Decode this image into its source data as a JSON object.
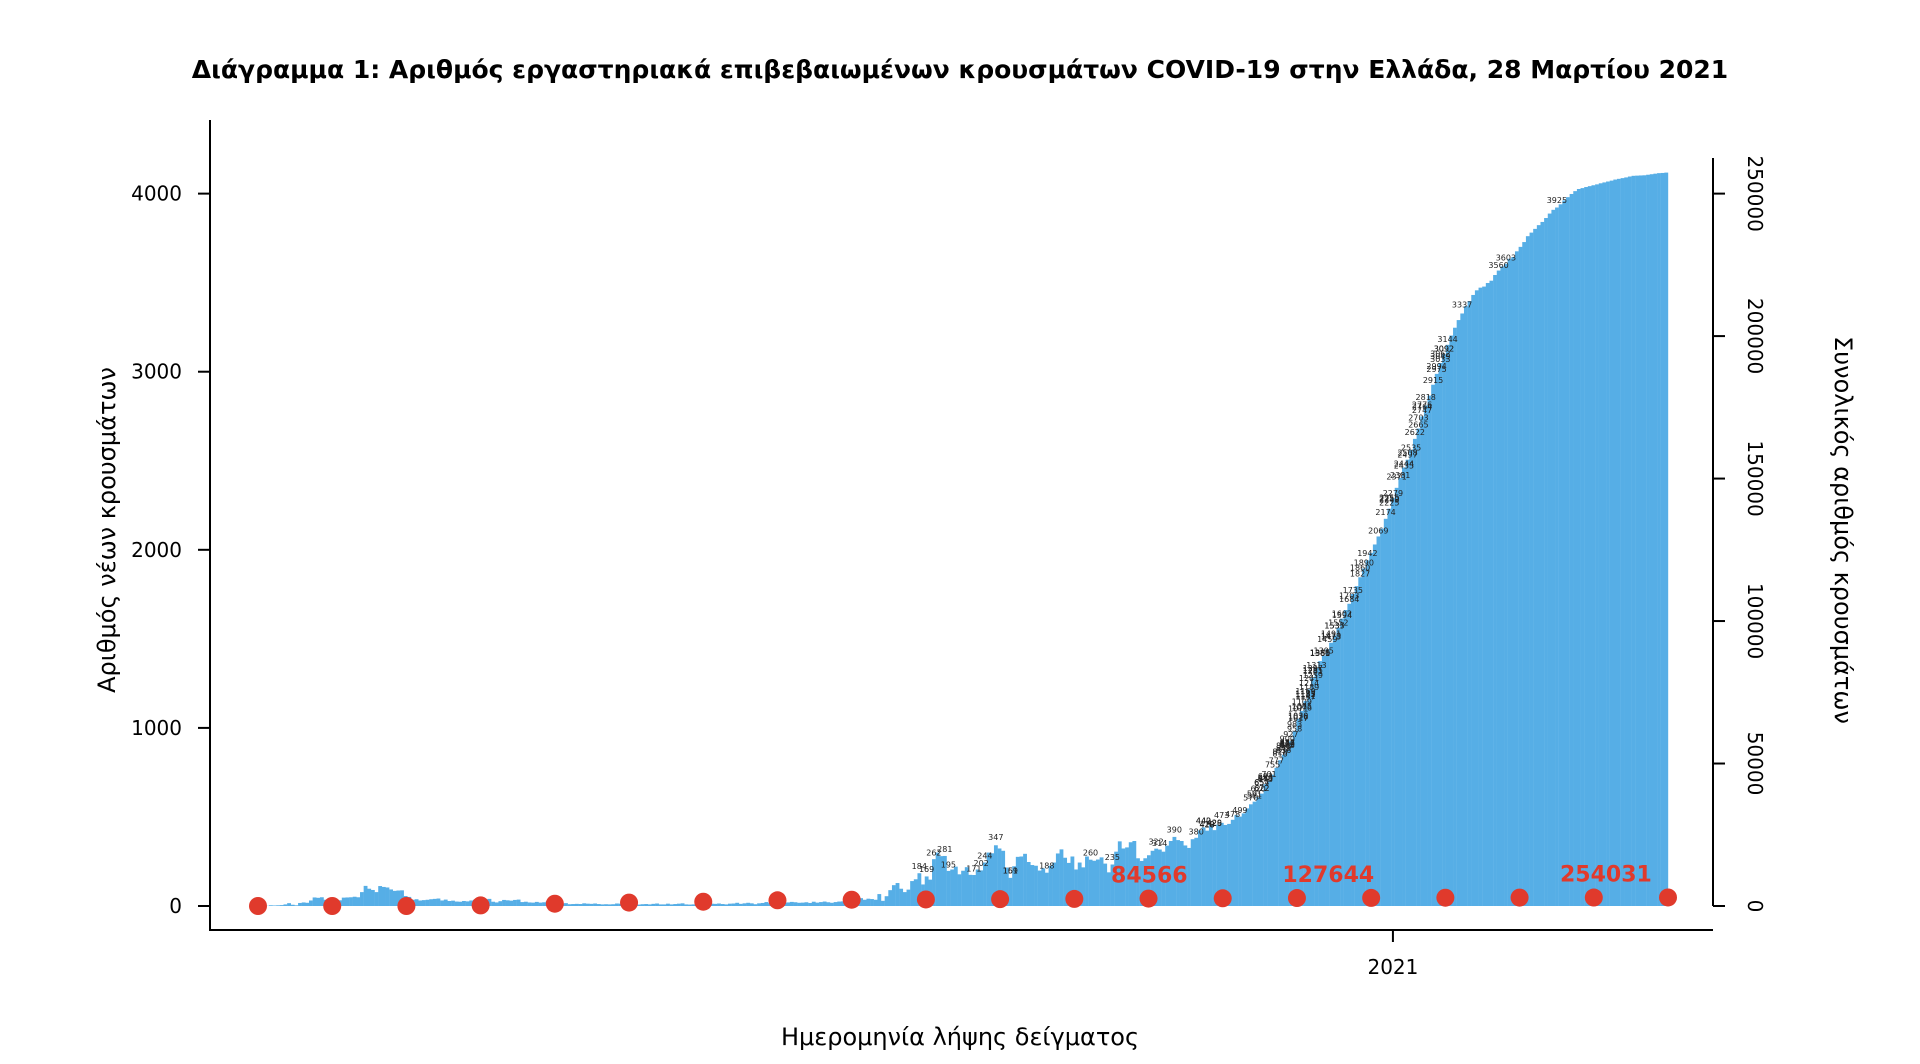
{
  "chart_data": {
    "type": "bar",
    "title": "Διάγραμμα 1: Αριθμός εργαστηριακά επιβεβαιωμένων κρουσμάτων COVID-19 στην Ελλάδα, 28 Μαρτίου 2021",
    "xlabel": "Ημερομηνία λήψης δείγματος",
    "ylabel": "Αριθμός νέων κρουσμάτων",
    "y2label": "Συνολικός αριθμός κρουσμάτων",
    "x_ticks": [
      {
        "label": "2021",
        "index": 311
      }
    ],
    "ylim": [
      0,
      4200
    ],
    "y_ticks": [
      0,
      1000,
      2000,
      3000,
      4000
    ],
    "y2lim": [
      0,
      262500
    ],
    "y2_ticks": [
      0,
      50000,
      100000,
      150000,
      200000,
      250000
    ],
    "colors": {
      "bars": "#56aee6",
      "cumulative": "#e03a2c"
    },
    "series": [
      {
        "name": "Αριθμός νέων κρουσμάτων",
        "type": "bar",
        "values": [
          2,
          2,
          1,
          4,
          3,
          4,
          5,
          9,
          16,
          7,
          4,
          17,
          20,
          18,
          31,
          48,
          46,
          49,
          35,
          38,
          27,
          21,
          32,
          47,
          48,
          49,
          52,
          49,
          78,
          113,
          97,
          90,
          78,
          112,
          107,
          104,
          93,
          85,
          87,
          88,
          56,
          51,
          35,
          38,
          31,
          33,
          35,
          38,
          40,
          42,
          31,
          36,
          28,
          30,
          25,
          24,
          28,
          26,
          31,
          35,
          33,
          30,
          37,
          40,
          24,
          20,
          27,
          34,
          32,
          30,
          34,
          36,
          22,
          24,
          20,
          19,
          23,
          19,
          21,
          28,
          18,
          16,
          14,
          14,
          16,
          10,
          11,
          12,
          11,
          15,
          13,
          12,
          14,
          11,
          9,
          10,
          9,
          10,
          14,
          13,
          15,
          10,
          12,
          9,
          8,
          10,
          11,
          9,
          12,
          14,
          9,
          9,
          13,
          9,
          11,
          13,
          15,
          9,
          8,
          9,
          10,
          11,
          8,
          10,
          13,
          12,
          14,
          11,
          9,
          13,
          14,
          18,
          12,
          15,
          18,
          15,
          10,
          15,
          17,
          22,
          16,
          18,
          21,
          19,
          18,
          20,
          23,
          21,
          18,
          19,
          21,
          17,
          24,
          19,
          22,
          25,
          21,
          18,
          22,
          25,
          26,
          19,
          22,
          34,
          26,
          44,
          35,
          41,
          39,
          35,
          67,
          29,
          55,
          89,
          117,
          129,
          97,
          78,
          92,
          140,
          150,
          184,
          121,
          166,
          148,
          263,
          300,
          280,
          281,
          197,
          205,
          221,
          178,
          198,
          218,
          175,
          174,
          205,
          200,
          244,
          300,
          296,
          341,
          323,
          310,
          216,
          158,
          223,
          276,
          278,
          293,
          247,
          230,
          226,
          199,
          211,
          187,
          226,
          244,
          295,
          318,
          271,
          242,
          278,
          205,
          244,
          217,
          278,
          260,
          254,
          261,
          273,
          238,
          189,
          233,
          305,
          363,
          323,
          329,
          358,
          365,
          268,
          253,
          268,
          285,
          310,
          322,
          317,
          305,
          339,
          365,
          388,
          370,
          365,
          340,
          326,
          375,
          383,
          425,
          441,
          423,
          453,
          426,
          457,
          467,
          455,
          461,
          484,
          510,
          502,
          520,
          548,
          571,
          586,
          611,
          631,
          684,
          703,
          737,
          776,
          819,
          850,
          878,
          925,
          981,
          1052,
          1096,
          1152,
          1217,
          1283,
          1337,
          1375,
          1406,
          1442,
          1478,
          1520,
          1563,
          1614,
          1662,
          1697,
          1752,
          1796,
          1846,
          1895,
          1941,
          1983,
          2030,
          2075,
          2119,
          2174,
          2231,
          2290,
          2348,
          2405,
          2462,
          2506,
          2561,
          2623,
          2681,
          2749,
          2811,
          2866,
          2927,
          2988,
          3049,
          3098,
          3151,
          3203,
          3247,
          3290,
          3327,
          3368,
          3397,
          3431,
          3457,
          3472,
          3478,
          3498,
          3511,
          3543,
          3568,
          3591,
          3606,
          3634,
          3644,
          3676,
          3701,
          3728,
          3761,
          3781,
          3802,
          3823,
          3841,
          3863,
          3888,
          3909,
          3922,
          3940,
          3962,
          3980,
          3998,
          4014,
          4026,
          4031,
          4037,
          4042,
          4047,
          4052,
          4058,
          4063,
          4068,
          4073,
          4079,
          4083,
          4087,
          4091,
          4096,
          4100,
          4101,
          4102,
          4103,
          4106,
          4109,
          4112,
          4115,
          4116,
          4118
        ]
      },
      {
        "name": "Συνολικός αριθμός κρουσμάτων",
        "type": "line",
        "values": [
          0,
          0,
          0,
          200,
          800,
          1200,
          1500,
          2000,
          2200,
          2300,
          2400,
          2500,
          2600,
          2700,
          2800,
          2850,
          2900,
          2950,
          2980,
          3000
        ]
      }
    ],
    "bar_data_labels": [
      {
        "text": "3603"
      },
      {
        "text": "3560"
      },
      {
        "text": "3062"
      },
      {
        "text": "3092"
      },
      {
        "text": "3033"
      },
      {
        "text": "3092"
      },
      {
        "text": "3049"
      },
      {
        "text": "2975"
      },
      {
        "text": "2818"
      },
      {
        "text": "2776"
      },
      {
        "text": "2535"
      },
      {
        "text": "2497"
      },
      {
        "text": "2444"
      },
      {
        "text": "2435"
      },
      {
        "text": "2243"
      },
      {
        "text": "2250"
      },
      {
        "text": "2069"
      },
      {
        "text": "1890"
      },
      {
        "text": "1827"
      },
      {
        "text": "1735"
      },
      {
        "text": "1594"
      },
      {
        "text": "1535"
      },
      {
        "text": "1537"
      },
      {
        "text": "1473"
      },
      {
        "text": "1395"
      },
      {
        "text": "1380"
      },
      {
        "text": "1285"
      },
      {
        "text": "1259"
      },
      {
        "text": "1241"
      },
      {
        "text": "1169"
      },
      {
        "text": "1155"
      },
      {
        "text": "1141"
      },
      {
        "text": "1137"
      },
      {
        "text": "1109"
      },
      {
        "text": "1076"
      },
      {
        "text": "1026"
      },
      {
        "text": "983"
      },
      {
        "text": "958"
      },
      {
        "text": "927"
      },
      {
        "text": "882"
      },
      {
        "text": "865"
      },
      {
        "text": "863"
      },
      {
        "text": "849"
      },
      {
        "text": "836"
      },
      {
        "text": "816"
      },
      {
        "text": "777"
      },
      {
        "text": "683"
      },
      {
        "text": "657"
      },
      {
        "text": "654"
      },
      {
        "text": "622"
      },
      {
        "text": "620"
      },
      {
        "text": "591"
      },
      {
        "text": "581"
      },
      {
        "text": "473"
      },
      {
        "text": "442"
      },
      {
        "text": "440"
      },
      {
        "text": "429"
      },
      {
        "text": "426"
      },
      {
        "text": "422"
      },
      {
        "text": "390"
      },
      {
        "text": "347"
      },
      {
        "text": "322"
      },
      {
        "text": "314"
      },
      {
        "text": "281"
      },
      {
        "text": "262"
      },
      {
        "text": "260"
      },
      {
        "text": "244"
      },
      {
        "text": "235"
      },
      {
        "text": "202"
      },
      {
        "text": "195"
      },
      {
        "text": "188"
      },
      {
        "text": "184"
      },
      {
        "text": "171"
      },
      {
        "text": "169"
      },
      {
        "text": "161"
      },
      {
        "text": "159"
      },
      {
        "text": "1381"
      },
      {
        "text": "1313"
      },
      {
        "text": "1189"
      },
      {
        "text": "1152"
      },
      {
        "text": "1017"
      },
      {
        "text": "900"
      },
      {
        "text": "755"
      },
      {
        "text": "680"
      },
      {
        "text": "622"
      },
      {
        "text": "570"
      },
      {
        "text": "499"
      },
      {
        "text": "478"
      },
      {
        "text": "418"
      },
      {
        "text": "380"
      },
      {
        "text": "1684"
      },
      {
        "text": "1479"
      },
      {
        "text": "1385"
      },
      {
        "text": "1297"
      },
      {
        "text": "1552"
      },
      {
        "text": "1491"
      },
      {
        "text": "869"
      },
      {
        "text": "701"
      },
      {
        "text": "692"
      },
      {
        "text": "673"
      },
      {
        "text": "2255"
      },
      {
        "text": "1942"
      },
      {
        "text": "1860"
      },
      {
        "text": "1703"
      },
      {
        "text": "1147"
      },
      {
        "text": "828"
      },
      {
        "text": "2381"
      },
      {
        "text": "2279"
      },
      {
        "text": "2225"
      },
      {
        "text": "2174"
      },
      {
        "text": "1281"
      },
      {
        "text": "872"
      },
      {
        "text": "3337"
      },
      {
        "text": "2747"
      },
      {
        "text": "2665"
      },
      {
        "text": "2508"
      },
      {
        "text": "2371"
      },
      {
        "text": "1602"
      },
      {
        "text": "3925"
      },
      {
        "text": "2915"
      },
      {
        "text": "2764"
      },
      {
        "text": "2703"
      },
      {
        "text": "1085"
      },
      {
        "text": "1030"
      },
      {
        "text": "3144"
      },
      {
        "text": "2994"
      },
      {
        "text": "2622"
      },
      {
        "text": "1459"
      },
      {
        "text": "1071"
      },
      {
        "text": "1214"
      },
      {
        "text": "877"
      }
    ],
    "cumulative_labels": [
      {
        "text": "84566",
        "index": 244
      },
      {
        "text": "127644",
        "index": 293
      },
      {
        "text": "254031",
        "index": 369
      }
    ],
    "grid": false,
    "legend": "none"
  }
}
